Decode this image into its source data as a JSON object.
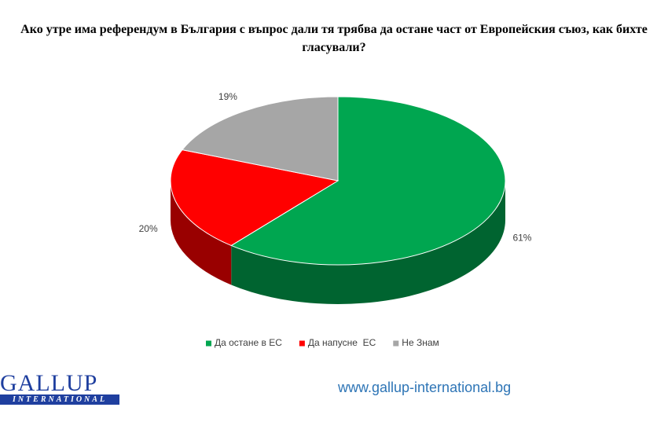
{
  "chart_data": {
    "type": "pie3d",
    "title": "Ако утре има референдум в България с въпрос дали тя трябва да остане част от Европейския съюз, как бихте гласували?",
    "categories": [
      "Да остане в ЕС",
      "Да напусне  ЕС",
      "Не Знам"
    ],
    "values": [
      61,
      20,
      19
    ],
    "value_labels": [
      "61%",
      "20%",
      "19%"
    ],
    "colors": [
      "#00a650",
      "#ff0000",
      "#a6a6a6"
    ],
    "legend": "bottom"
  },
  "footer": {
    "logo": "GALLUP",
    "logo_sub": "INTERNATIONAL",
    "url": "www.gallup-international.bg"
  }
}
